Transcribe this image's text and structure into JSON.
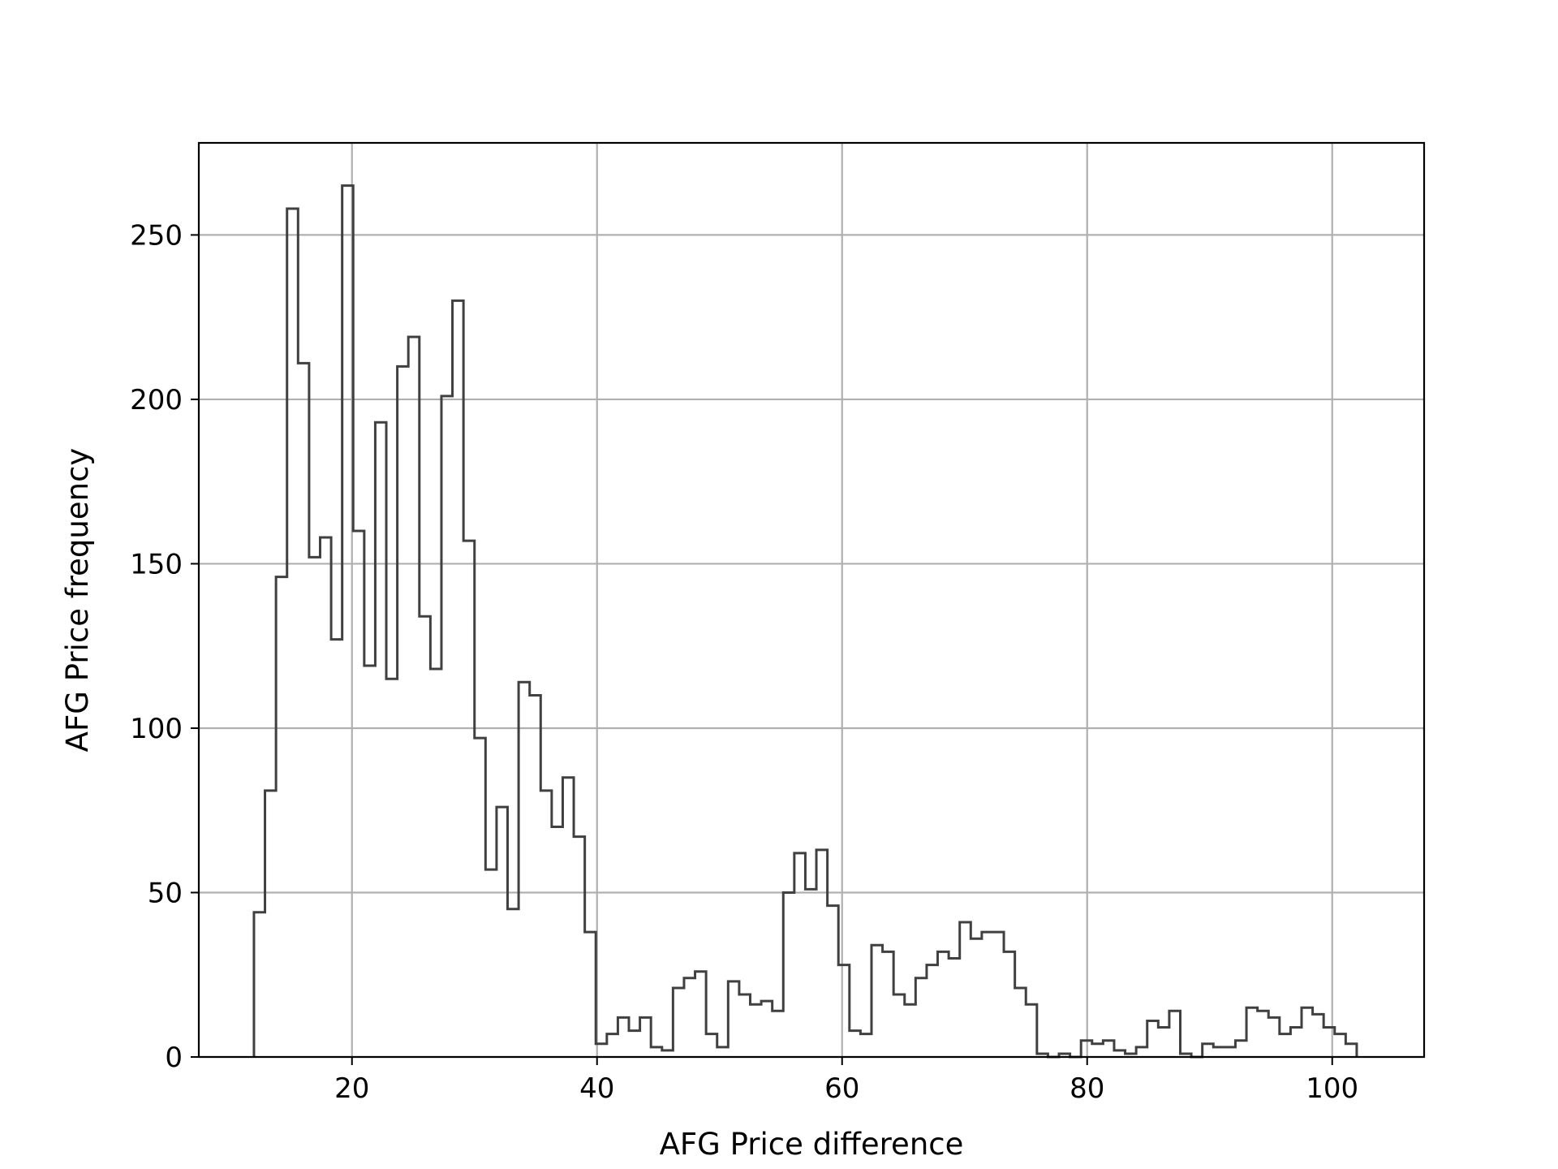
{
  "chart_data": {
    "type": "histogram",
    "title": "",
    "xlabel": "AFG Price difference",
    "ylabel": "AFG Price frequency",
    "xlim": [
      7.5,
      107.5
    ],
    "ylim": [
      0,
      278
    ],
    "xticks": [
      20,
      40,
      60,
      80,
      100
    ],
    "yticks": [
      0,
      50,
      100,
      150,
      200,
      250
    ],
    "grid": true,
    "legend": "none",
    "bin_width": 0.9,
    "bin_start": 12.0,
    "counts": [
      44,
      81,
      146,
      258,
      211,
      152,
      158,
      127,
      265,
      160,
      119,
      193,
      115,
      210,
      219,
      134,
      118,
      201,
      230,
      157,
      97,
      57,
      76,
      45,
      114,
      110,
      81,
      70,
      85,
      67,
      38,
      4,
      7,
      12,
      8,
      12,
      3,
      2,
      21,
      24,
      26,
      7,
      3,
      23,
      19,
      16,
      17,
      14,
      50,
      62,
      51,
      63,
      46,
      28,
      8,
      7,
      34,
      32,
      19,
      16,
      24,
      28,
      32,
      30,
      41,
      36,
      38,
      38,
      32,
      21,
      16,
      1,
      0,
      1,
      0,
      5,
      4,
      5,
      2,
      1,
      3,
      11,
      9,
      14,
      1,
      0,
      4,
      3,
      3,
      5,
      15,
      14,
      12,
      7,
      9,
      15,
      13,
      9,
      7,
      4
    ],
    "colors": {
      "step_line": "#404040",
      "grid": "#b0b0b0",
      "axes": "#000000"
    }
  }
}
